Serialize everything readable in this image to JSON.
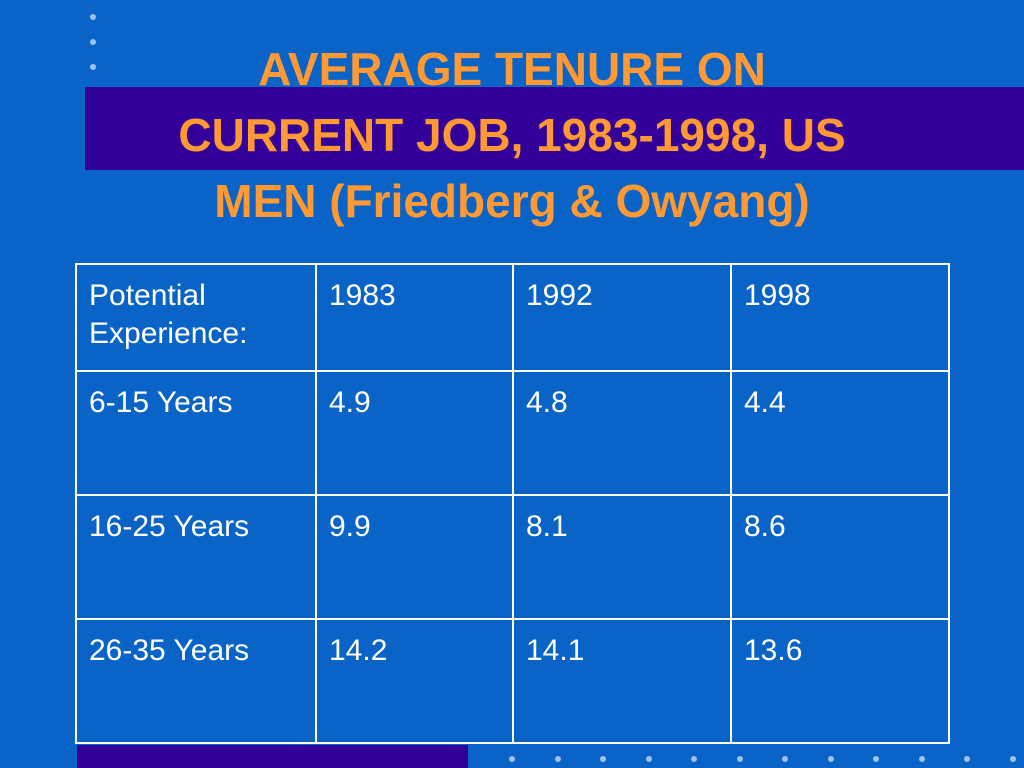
{
  "title": {
    "lines": [
      "AVERAGE TENURE ON",
      "CURRENT JOB, 1983-1998, US",
      "MEN (Friedberg & Owyang)"
    ]
  },
  "table": {
    "header": [
      "Potential Experience:",
      "1983",
      "1992",
      "1998"
    ],
    "rows": [
      [
        "6-15 Years",
        4.9,
        4.8,
        4.4
      ],
      [
        "16-25 Years",
        9.9,
        8.1,
        8.6
      ],
      [
        "26-35 Years",
        14.2,
        14.1,
        13.6
      ]
    ]
  }
}
